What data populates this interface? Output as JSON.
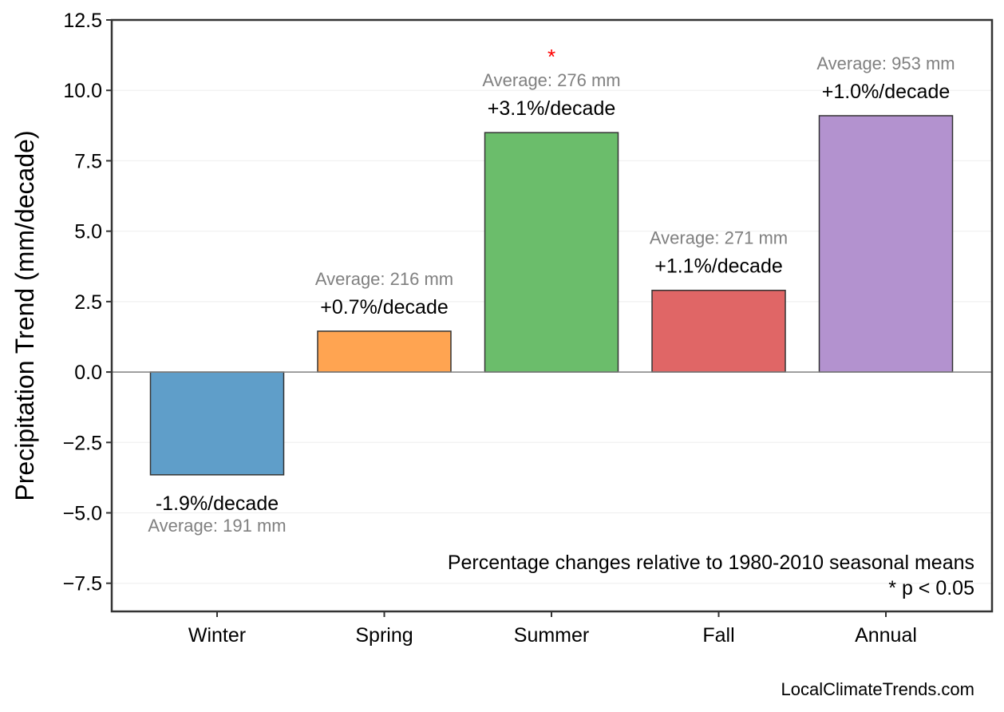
{
  "chart_data": {
    "type": "bar",
    "ylabel": "Precipitation Trend (mm/decade)",
    "ylim": [
      -8.5,
      12.5
    ],
    "yticks": [
      12.5,
      10.0,
      7.5,
      5.0,
      2.5,
      0.0,
      -2.5,
      -5.0,
      -7.5
    ],
    "ytick_labels": [
      "12.5",
      "10.0",
      "7.5",
      "5.0",
      "2.5",
      "0.0",
      "−2.5",
      "−5.0",
      "−7.5"
    ],
    "grid": true,
    "categories": [
      "Winter",
      "Spring",
      "Summer",
      "Fall",
      "Annual"
    ],
    "values": [
      -3.65,
      1.45,
      8.5,
      2.9,
      9.1
    ],
    "colors": [
      "#5f9ec9",
      "#ffa451",
      "#6bbd6b",
      "#e06666",
      "#b392cf"
    ],
    "percent_labels": [
      "-1.9%/decade",
      "+0.7%/decade",
      "+3.1%/decade",
      "+1.1%/decade",
      "+1.0%/decade"
    ],
    "average_labels": [
      "Average: 191 mm",
      "Average: 216 mm",
      "Average: 276 mm",
      "Average: 271 mm",
      "Average: 953 mm"
    ],
    "significant": [
      false,
      false,
      true,
      false,
      false
    ],
    "significance_marker": "*",
    "notes": [
      "Percentage changes relative to 1980-2010 seasonal means",
      "* p < 0.05"
    ],
    "credit": "LocalClimateTrends.com"
  }
}
